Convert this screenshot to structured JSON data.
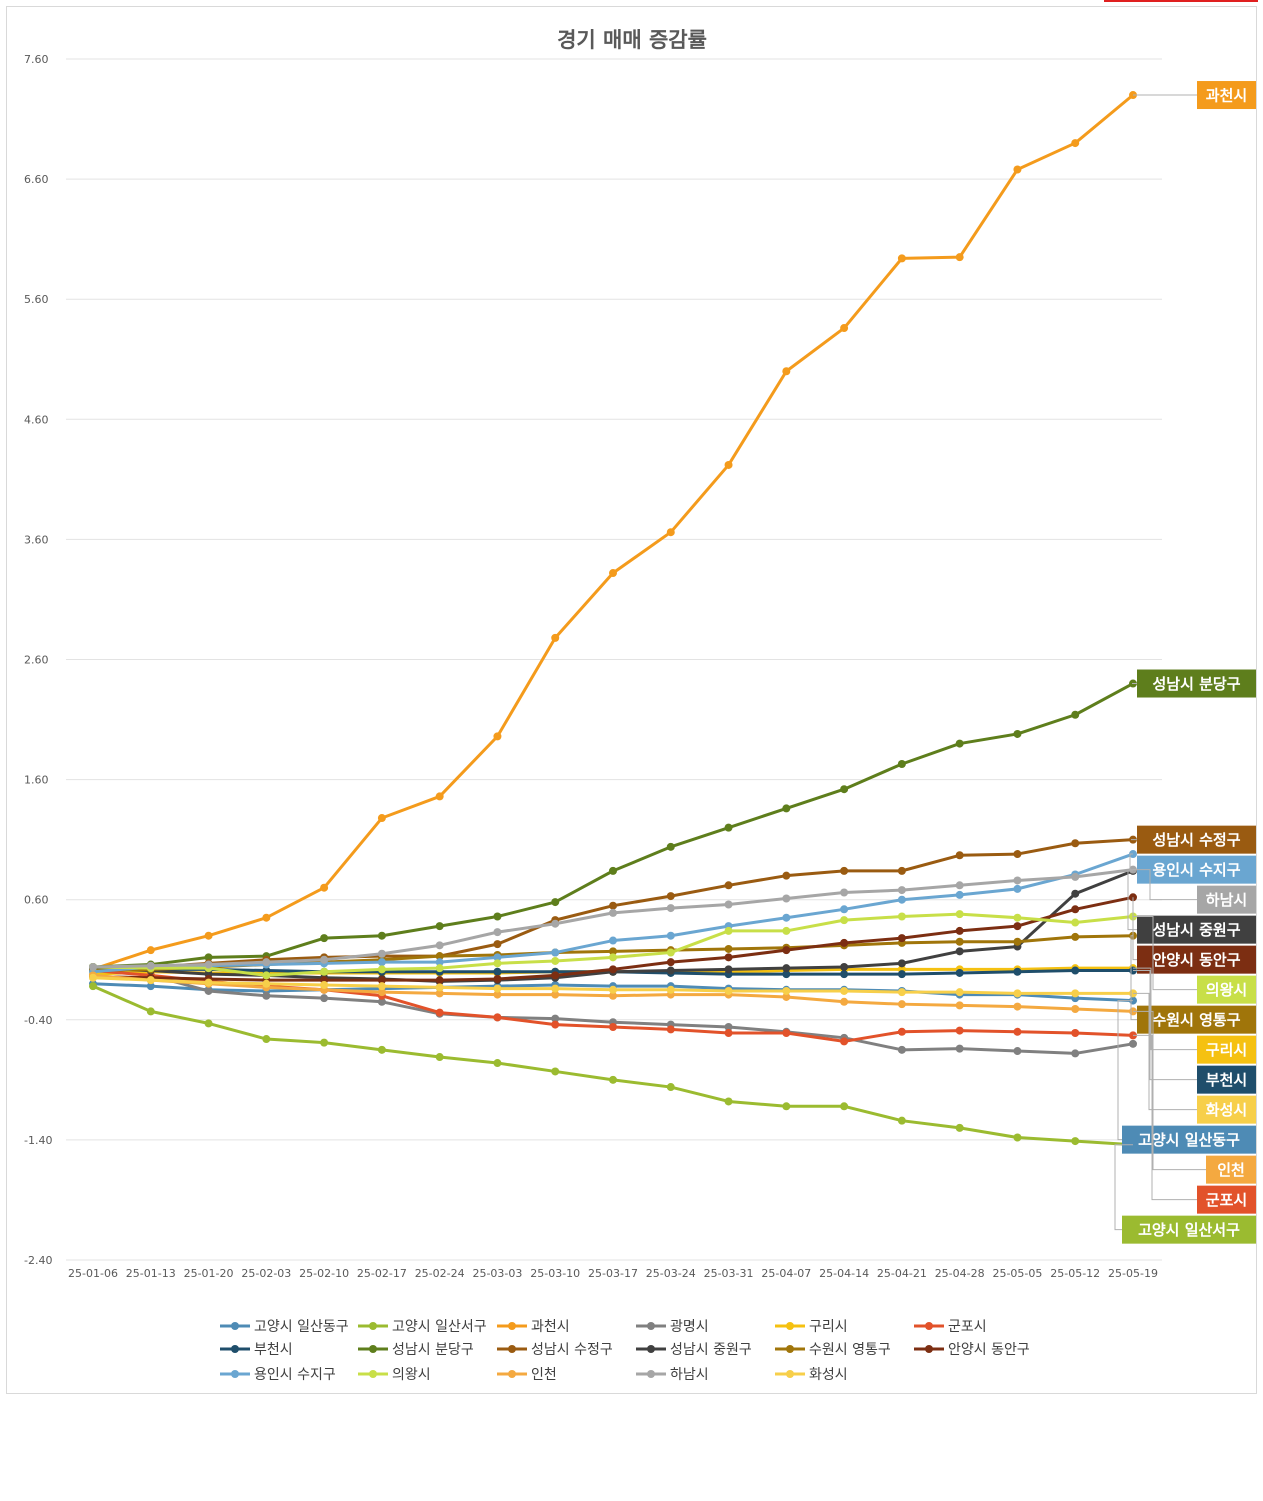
{
  "chart_data": {
    "type": "line",
    "title": "경기 매매 증감률",
    "xlabel": "",
    "ylabel": "",
    "ylim": [
      -2.4,
      7.6
    ],
    "yticks": [
      "7.60",
      "6.60",
      "5.60",
      "4.60",
      "3.60",
      "2.60",
      "1.60",
      "0.60",
      "-0.40",
      "-1.40",
      "-2.40"
    ],
    "yticks_values": [
      7.6,
      6.6,
      5.6,
      4.6,
      3.6,
      2.6,
      1.6,
      0.6,
      -0.4,
      -1.4,
      -2.4
    ],
    "grid": true,
    "legend_position": "bottom",
    "categories": [
      "25-01-06",
      "25-01-13",
      "25-01-20",
      "25-02-03",
      "25-02-10",
      "25-02-17",
      "25-02-24",
      "25-03-03",
      "25-03-10",
      "25-03-17",
      "25-03-24",
      "25-03-31",
      "25-04-07",
      "25-04-14",
      "25-04-21",
      "25-04-28",
      "25-05-05",
      "25-05-12",
      "25-05-19"
    ],
    "series": [
      {
        "name": "고양시 일산동구",
        "color": "#4e8bb5",
        "values": [
          -0.1,
          -0.12,
          -0.15,
          -0.16,
          -0.15,
          -0.14,
          -0.13,
          -0.12,
          -0.11,
          -0.12,
          -0.12,
          -0.14,
          -0.15,
          -0.15,
          -0.16,
          -0.19,
          -0.19,
          -0.22,
          -0.24
        ]
      },
      {
        "name": "고양시 일산서구",
        "color": "#9bbb30",
        "values": [
          -0.12,
          -0.33,
          -0.43,
          -0.56,
          -0.59,
          -0.65,
          -0.71,
          -0.76,
          -0.83,
          -0.9,
          -0.96,
          -1.08,
          -1.12,
          -1.12,
          -1.24,
          -1.3,
          -1.38,
          -1.41,
          -1.44
        ]
      },
      {
        "name": "과천시",
        "color": "#f49b1c",
        "values": [
          0.02,
          0.18,
          0.3,
          0.45,
          0.7,
          1.28,
          1.46,
          1.96,
          2.78,
          3.32,
          3.66,
          4.22,
          5.0,
          5.36,
          5.94,
          5.95,
          6.68,
          6.9,
          7.3
        ]
      },
      {
        "name": "광명시",
        "color": "#808080",
        "values": [
          0.02,
          -0.03,
          -0.16,
          -0.2,
          -0.22,
          -0.25,
          -0.35,
          -0.38,
          -0.39,
          -0.42,
          -0.44,
          -0.46,
          -0.5,
          -0.55,
          -0.65,
          -0.64,
          -0.66,
          -0.68,
          -0.6
        ]
      },
      {
        "name": "구리시",
        "color": "#f5c111",
        "values": [
          -0.02,
          0.0,
          -0.01,
          -0.01,
          -0.01,
          -0.01,
          -0.01,
          -0.01,
          0.0,
          0.0,
          0.0,
          0.0,
          0.01,
          0.02,
          0.02,
          0.02,
          0.02,
          0.03,
          0.03
        ]
      },
      {
        "name": "군포시",
        "color": "#e2522a",
        "values": [
          0.01,
          -0.03,
          -0.08,
          -0.12,
          -0.15,
          -0.2,
          -0.34,
          -0.38,
          -0.44,
          -0.46,
          -0.48,
          -0.51,
          -0.51,
          -0.58,
          -0.5,
          -0.49,
          -0.5,
          -0.51,
          -0.53
        ]
      },
      {
        "name": "부천시",
        "color": "#1f4e6b",
        "values": [
          0.04,
          0.02,
          0.02,
          0.01,
          0.0,
          0.0,
          0.0,
          0.0,
          0.0,
          0.0,
          -0.01,
          -0.02,
          -0.02,
          -0.02,
          -0.02,
          -0.01,
          0.0,
          0.01,
          0.01
        ]
      },
      {
        "name": "성남시 분당구",
        "color": "#5e7e1c",
        "values": [
          0.04,
          0.06,
          0.12,
          0.13,
          0.28,
          0.3,
          0.38,
          0.46,
          0.58,
          0.84,
          1.04,
          1.2,
          1.36,
          1.52,
          1.73,
          1.9,
          1.98,
          2.14,
          2.4
        ]
      },
      {
        "name": "성남시 수정구",
        "color": "#9a5b11",
        "values": [
          0.02,
          0.04,
          0.07,
          0.1,
          0.12,
          0.13,
          0.13,
          0.23,
          0.43,
          0.55,
          0.63,
          0.72,
          0.8,
          0.84,
          0.84,
          0.97,
          0.98,
          1.07,
          1.1
        ]
      },
      {
        "name": "성남시 중원구",
        "color": "#404040",
        "values": [
          0.03,
          0.01,
          -0.02,
          -0.03,
          -0.05,
          -0.06,
          -0.08,
          -0.07,
          -0.05,
          0.0,
          0.01,
          0.02,
          0.03,
          0.04,
          0.07,
          0.17,
          0.21,
          0.65,
          0.84
        ]
      },
      {
        "name": "수원시 영통구",
        "color": "#a0750a",
        "values": [
          0.01,
          0.02,
          0.04,
          0.06,
          0.08,
          0.1,
          0.13,
          0.14,
          0.16,
          0.17,
          0.18,
          0.19,
          0.2,
          0.22,
          0.24,
          0.25,
          0.25,
          0.29,
          0.3
        ]
      },
      {
        "name": "안양시 동안구",
        "color": "#7c2e12",
        "values": [
          -0.04,
          -0.05,
          -0.06,
          -0.07,
          -0.07,
          -0.07,
          -0.07,
          -0.06,
          -0.03,
          0.02,
          0.08,
          0.12,
          0.18,
          0.24,
          0.28,
          0.34,
          0.38,
          0.52,
          0.62
        ]
      },
      {
        "name": "용인시 수지구",
        "color": "#6aa6d1",
        "values": [
          0.0,
          0.04,
          0.05,
          0.06,
          0.07,
          0.08,
          0.08,
          0.12,
          0.16,
          0.26,
          0.3,
          0.38,
          0.45,
          0.52,
          0.6,
          0.64,
          0.69,
          0.81,
          0.98
        ]
      },
      {
        "name": "의왕시",
        "color": "#c8df48",
        "values": [
          0.04,
          0.03,
          0.03,
          -0.03,
          0.0,
          0.02,
          0.03,
          0.07,
          0.09,
          0.12,
          0.16,
          0.34,
          0.34,
          0.43,
          0.46,
          0.48,
          0.45,
          0.41,
          0.46
        ]
      },
      {
        "name": "인천",
        "color": "#f4a940",
        "values": [
          -0.03,
          -0.07,
          -0.1,
          -0.13,
          -0.15,
          -0.17,
          -0.18,
          -0.19,
          -0.19,
          -0.2,
          -0.19,
          -0.19,
          -0.21,
          -0.25,
          -0.27,
          -0.28,
          -0.29,
          -0.31,
          -0.33
        ]
      },
      {
        "name": "하남시",
        "color": "#a6a6a6",
        "values": [
          0.04,
          0.05,
          0.06,
          0.08,
          0.1,
          0.15,
          0.22,
          0.33,
          0.4,
          0.49,
          0.53,
          0.56,
          0.61,
          0.66,
          0.68,
          0.72,
          0.76,
          0.79,
          0.85
        ]
      },
      {
        "name": "화성시",
        "color": "#f7cf4a",
        "values": [
          -0.05,
          -0.07,
          -0.09,
          -0.1,
          -0.11,
          -0.12,
          -0.13,
          -0.14,
          -0.14,
          -0.15,
          -0.15,
          -0.16,
          -0.16,
          -0.16,
          -0.17,
          -0.17,
          -0.18,
          -0.18,
          -0.18
        ]
      }
    ],
    "end_labels": [
      {
        "name": "과천시",
        "bg": "#f49b1c",
        "fg": "#ffffff"
      },
      {
        "name": "성남시 분당구",
        "bg": "#5e7e1c",
        "fg": "#ffffff"
      },
      {
        "name": "성남시 수정구",
        "bg": "#9a5b11",
        "fg": "#ffffff"
      },
      {
        "name": "용인시 수지구",
        "bg": "#6aa6d1",
        "fg": "#ffffff"
      },
      {
        "name": "하남시",
        "bg": "#a6a6a6",
        "fg": "#ffffff"
      },
      {
        "name": "성남시 중원구",
        "bg": "#404040",
        "fg": "#ffffff"
      },
      {
        "name": "안양시 동안구",
        "bg": "#7c2e12",
        "fg": "#ffffff"
      },
      {
        "name": "의왕시",
        "bg": "#c8df48",
        "fg": "#ffffff"
      },
      {
        "name": "수원시 영통구",
        "bg": "#a0750a",
        "fg": "#ffffff"
      },
      {
        "name": "구리시",
        "bg": "#f5c111",
        "fg": "#ffffff"
      },
      {
        "name": "부천시",
        "bg": "#1f4e6b",
        "fg": "#ffffff"
      },
      {
        "name": "화성시",
        "bg": "#f7cf4a",
        "fg": "#ffffff"
      },
      {
        "name": "고양시 일산동구",
        "bg": "#4e8bb5",
        "fg": "#ffffff"
      },
      {
        "name": "인천",
        "bg": "#f4a940",
        "fg": "#ffffff"
      },
      {
        "name": "군포시",
        "bg": "#e2522a",
        "fg": "#ffffff"
      },
      {
        "name": "고양시 일산서구",
        "bg": "#9bbb30",
        "fg": "#ffffff"
      }
    ]
  }
}
